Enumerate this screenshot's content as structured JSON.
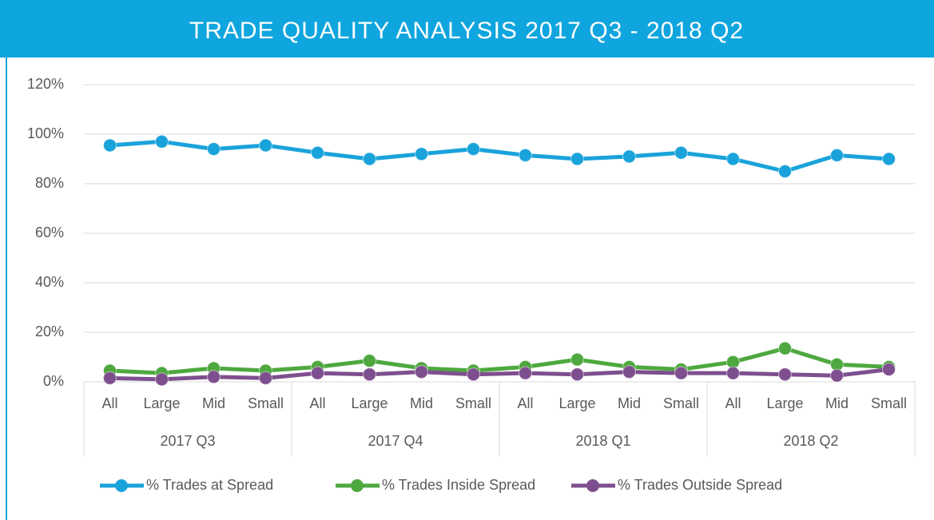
{
  "chart_data": {
    "type": "line",
    "title": "TRADE QUALITY ANALYSIS 2017 Q3 - 2018 Q2",
    "categories": [
      "All",
      "Large",
      "Mid",
      "Small",
      "All",
      "Large",
      "Mid",
      "Small",
      "All",
      "Large",
      "Mid",
      "Small",
      "All",
      "Large",
      "Mid",
      "Small"
    ],
    "groups": [
      "2017 Q3",
      "2017 Q4",
      "2018 Q1",
      "2018 Q2"
    ],
    "series": [
      {
        "name": "% Trades at Spread",
        "color": "#1aa3db",
        "values": [
          95.5,
          97,
          94,
          95.5,
          92.5,
          90,
          92,
          94,
          91.5,
          90,
          91,
          92.5,
          90,
          85,
          91.5,
          90
        ]
      },
      {
        "name": "% Trades Inside Spread",
        "color": "#4ea83f",
        "values": [
          4.5,
          3.5,
          5.5,
          4.5,
          6,
          8.5,
          5.5,
          4.5,
          6,
          9,
          6,
          5,
          8,
          13.5,
          7,
          6
        ]
      },
      {
        "name": "% Trades Outside Spread",
        "color": "#7e4f8e",
        "values": [
          1.5,
          1,
          2,
          1.5,
          3.5,
          3,
          4,
          3,
          3.5,
          3,
          4,
          3.5,
          3.5,
          3,
          2.5,
          5
        ]
      }
    ],
    "ylim": [
      0,
      120
    ],
    "yticks": [
      {
        "value": 0,
        "label": "0%"
      },
      {
        "value": 20,
        "label": "20%"
      },
      {
        "value": 40,
        "label": "40%"
      },
      {
        "value": 60,
        "label": "60%"
      },
      {
        "value": 80,
        "label": "80%"
      },
      {
        "value": 100,
        "label": "100%"
      },
      {
        "value": 120,
        "label": "120%"
      }
    ],
    "grid": true,
    "legend": "bottom"
  }
}
